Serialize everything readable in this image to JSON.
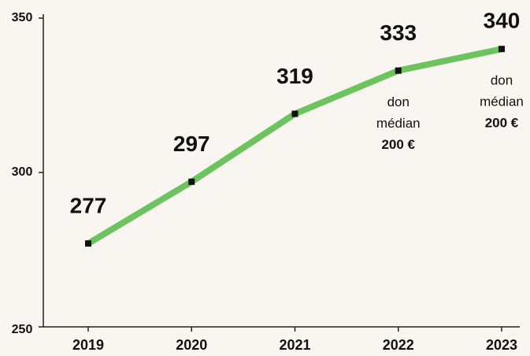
{
  "chart_data": {
    "type": "line",
    "categories": [
      "2019",
      "2020",
      "2021",
      "2022",
      "2023"
    ],
    "series": [
      {
        "name": null,
        "color": "#6dc45f",
        "values": [
          277,
          297,
          319,
          333,
          340
        ]
      }
    ],
    "annotations": [
      null,
      null,
      null,
      [
        "don",
        "médian",
        "200 €"
      ],
      [
        "don",
        "médian",
        "200 €"
      ]
    ],
    "ylim": [
      250,
      350
    ],
    "yticks": [
      250,
      300,
      350
    ],
    "grid": false
  }
}
